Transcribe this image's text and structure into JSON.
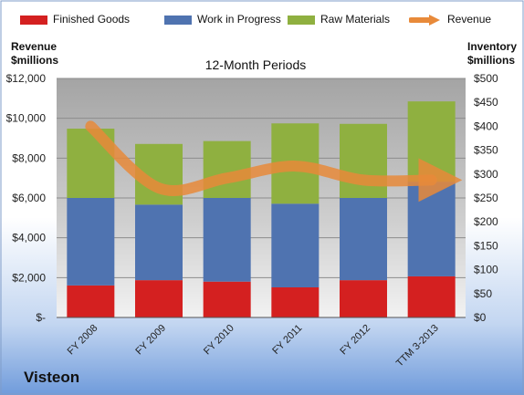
{
  "chart_data": {
    "type": "bar",
    "stacked": true,
    "title": "12-Month Periods",
    "categories": [
      "FY 2008",
      "FY 2009",
      "FY 2010",
      "FY 2011",
      "FY 2012",
      "TTM 3-2013"
    ],
    "series": [
      {
        "name": "Finished Goods",
        "axis": "right",
        "color": "#d42020",
        "values": [
          67,
          78,
          75,
          63,
          78,
          86
        ]
      },
      {
        "name": "Work in Progress",
        "axis": "right",
        "color": "#4f73b0",
        "values": [
          183,
          158,
          175,
          175,
          172,
          198
        ]
      },
      {
        "name": "Raw Materials",
        "axis": "right",
        "color": "#8fb040",
        "values": [
          145,
          127,
          119,
          168,
          155,
          168
        ]
      },
      {
        "name": "Revenue",
        "type": "line",
        "axis": "left",
        "color": "#e88a3a",
        "values": [
          9600,
          6500,
          7000,
          7600,
          6900,
          6900
        ]
      }
    ],
    "left_axis": {
      "label": "Revenue\n$millions",
      "ylim": [
        0,
        12000
      ],
      "ticks": [
        0,
        2000,
        4000,
        6000,
        8000,
        10000,
        12000
      ],
      "tick_labels": [
        "$-",
        "$2,000",
        "$4,000",
        "$6,000",
        "$8,000",
        "$10,000",
        "$12,000"
      ]
    },
    "right_axis": {
      "label": "Inventory\n$millions",
      "ylim": [
        0,
        500
      ],
      "ticks": [
        0,
        50,
        100,
        150,
        200,
        250,
        300,
        350,
        400,
        450,
        500
      ],
      "tick_labels": [
        "$0",
        "$50",
        "$100",
        "$150",
        "$200",
        "$250",
        "$300",
        "$350",
        "$400",
        "$450",
        "$500"
      ]
    },
    "grid": true,
    "legend": "top"
  },
  "company": "Visteon"
}
